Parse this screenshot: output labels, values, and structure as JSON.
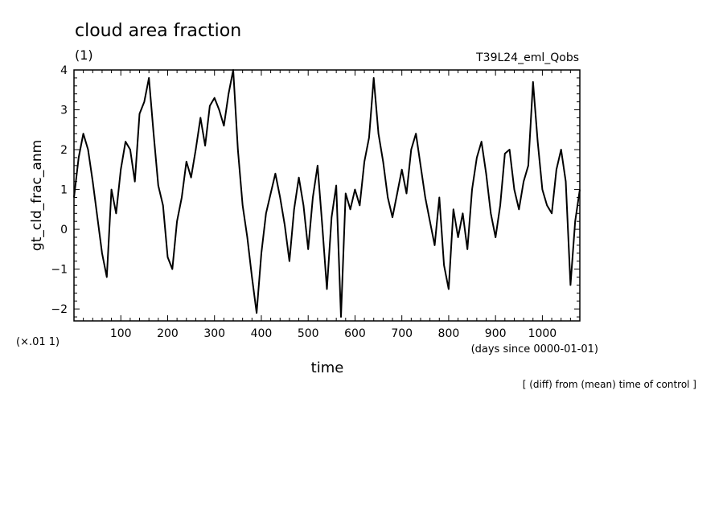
{
  "chart_data": {
    "type": "line",
    "title": "cloud area fraction",
    "units": "(1)",
    "experiment": "T39L24_eml_Qobs",
    "ylabel": "gt_cld_frac_anm",
    "xlabel": "time",
    "x_units": "(days since 0000-01-01)",
    "y_scale_note": "(×.01 1)",
    "footnote": "[ (diff) from (mean) time of control ]",
    "xlim": [
      0,
      1080
    ],
    "ylim": [
      -2.3,
      4.0
    ],
    "x_ticks": [
      100,
      200,
      300,
      400,
      500,
      600,
      700,
      800,
      900,
      1000
    ],
    "y_ticks": [
      -2,
      -1,
      0,
      1,
      2,
      3,
      4
    ],
    "grid": false,
    "legend": "none",
    "series": [
      {
        "line_color": "#000000",
        "x": [
          0,
          10,
          20,
          30,
          40,
          50,
          60,
          70,
          80,
          90,
          100,
          110,
          120,
          130,
          140,
          150,
          160,
          170,
          180,
          190,
          200,
          210,
          220,
          230,
          240,
          250,
          260,
          270,
          280,
          290,
          300,
          310,
          320,
          330,
          340,
          350,
          360,
          370,
          380,
          390,
          400,
          410,
          420,
          430,
          440,
          450,
          460,
          470,
          480,
          490,
          500,
          510,
          520,
          530,
          540,
          550,
          560,
          570,
          580,
          590,
          600,
          610,
          620,
          630,
          640,
          650,
          660,
          670,
          680,
          690,
          700,
          710,
          720,
          730,
          740,
          750,
          760,
          770,
          780,
          790,
          800,
          810,
          820,
          830,
          840,
          850,
          860,
          870,
          880,
          890,
          900,
          910,
          920,
          930,
          940,
          950,
          960,
          970,
          980,
          990,
          1000,
          1010,
          1020,
          1030,
          1040,
          1050,
          1060,
          1070,
          1080
        ],
        "values": [
          0.8,
          1.8,
          2.4,
          2.0,
          1.2,
          0.3,
          -0.6,
          -1.2,
          1.0,
          0.4,
          1.5,
          2.2,
          2.0,
          1.2,
          2.9,
          3.2,
          3.8,
          2.4,
          1.1,
          0.6,
          -0.7,
          -1.0,
          0.2,
          0.8,
          1.7,
          1.3,
          2.0,
          2.8,
          2.1,
          3.1,
          3.3,
          3.0,
          2.6,
          3.4,
          4.1,
          2.0,
          0.6,
          -0.2,
          -1.2,
          -2.1,
          -0.6,
          0.4,
          0.9,
          1.4,
          0.8,
          0.1,
          -0.8,
          0.5,
          1.3,
          0.6,
          -0.5,
          0.8,
          1.6,
          0.1,
          -1.5,
          0.3,
          1.1,
          -2.2,
          0.9,
          0.5,
          1.0,
          0.6,
          1.7,
          2.3,
          3.8,
          2.4,
          1.7,
          0.8,
          0.3,
          0.9,
          1.5,
          0.9,
          2.0,
          2.4,
          1.6,
          0.8,
          0.2,
          -0.4,
          0.8,
          -0.9,
          -1.5,
          0.5,
          -0.2,
          0.4,
          -0.5,
          1.0,
          1.8,
          2.2,
          1.4,
          0.4,
          -0.2,
          0.6,
          1.9,
          2.0,
          1.0,
          0.5,
          1.2,
          1.6,
          3.7,
          2.2,
          1.0,
          0.6,
          0.4,
          1.5,
          2.0,
          1.2,
          -1.4,
          0.2,
          1.0
        ]
      }
    ]
  }
}
